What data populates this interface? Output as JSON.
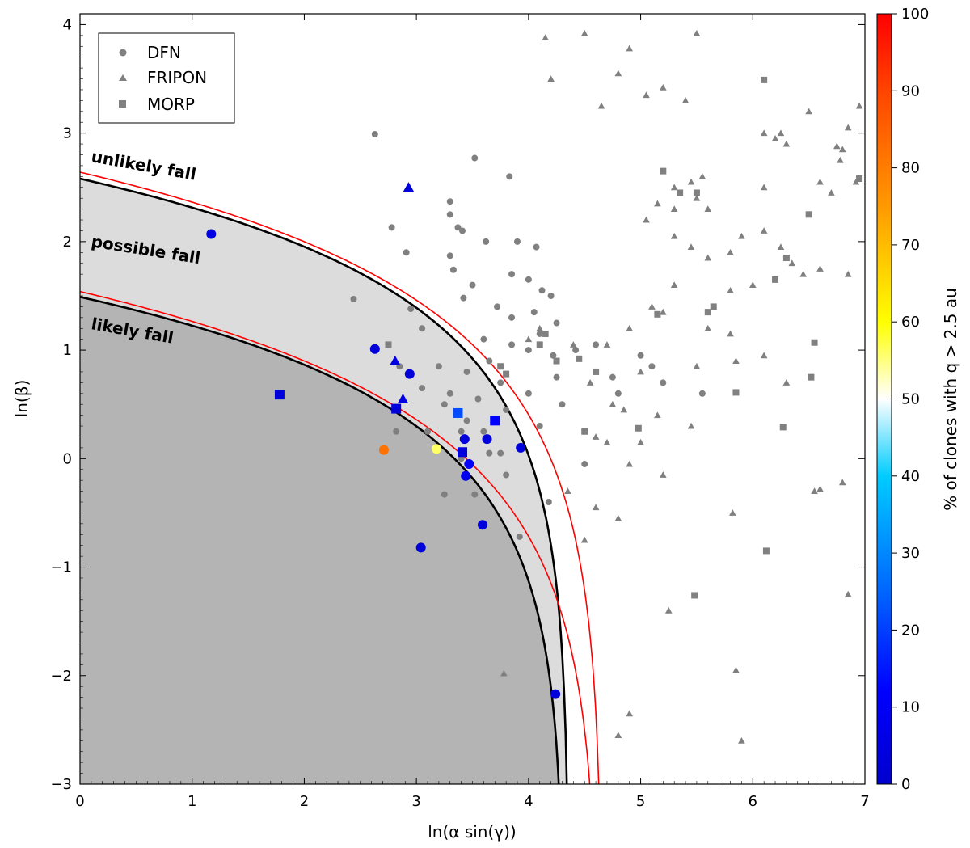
{
  "chart_data": {
    "type": "scatter",
    "xlabel": "ln(α sin(γ))",
    "ylabel": "ln(β)",
    "colorbar_label": "% of clones with q > 2.5 au",
    "xlim": [
      0,
      7
    ],
    "ylim": [
      -3,
      4.1
    ],
    "xticks": [
      "0",
      "1",
      "2",
      "3",
      "4",
      "5",
      "6",
      "7"
    ],
    "yticks": [
      "−3",
      "−2",
      "−1",
      "0",
      "1",
      "2",
      "3",
      "4"
    ],
    "colorbar_ticks": [
      "0",
      "10",
      "20",
      "30",
      "40",
      "50",
      "60",
      "70",
      "80",
      "90",
      "100"
    ],
    "legend": {
      "position": "top-left",
      "entries": [
        {
          "label": "DFN",
          "marker": "circle"
        },
        {
          "label": "FRIPON",
          "marker": "triangle"
        },
        {
          "label": "MORP",
          "marker": "square"
        }
      ]
    },
    "regions": [
      {
        "label": "unlikely fall"
      },
      {
        "label": "possible fall"
      },
      {
        "label": "likely fall"
      }
    ],
    "boundaries": [
      {
        "name": "black-upper",
        "color": "#000000",
        "y0": 2.58,
        "xmax": 4.36
      },
      {
        "name": "red-upper",
        "color": "#ff0000",
        "y0": 2.64,
        "xmax": 4.66
      },
      {
        "name": "black-lower",
        "color": "#000000",
        "y0": 1.49,
        "xmax": 4.32
      },
      {
        "name": "red-lower",
        "color": "#ff0000",
        "y0": 1.54,
        "xmax": 4.63
      }
    ],
    "colors": {
      "grey_marker": "#808080",
      "possible_fill": "#dcdcdc",
      "likely_fill": "#b4b4b4"
    },
    "series": [
      {
        "name": "DFN",
        "marker": "circle",
        "points": [
          [
            2.63,
            2.99
          ],
          [
            3.52,
            2.77
          ],
          [
            3.83,
            2.6
          ],
          [
            3.3,
            2.37
          ],
          [
            3.3,
            2.25
          ],
          [
            2.78,
            2.13
          ],
          [
            3.37,
            2.13
          ],
          [
            3.41,
            2.1
          ],
          [
            2.91,
            1.9
          ],
          [
            3.3,
            1.87
          ],
          [
            3.62,
            2.0
          ],
          [
            3.9,
            2.0
          ],
          [
            4.07,
            1.95
          ],
          [
            3.33,
            1.74
          ],
          [
            3.5,
            1.6
          ],
          [
            3.85,
            1.7
          ],
          [
            4.0,
            1.65
          ],
          [
            4.12,
            1.55
          ],
          [
            4.2,
            1.5
          ],
          [
            3.42,
            1.48
          ],
          [
            3.72,
            1.4
          ],
          [
            3.85,
            1.3
          ],
          [
            4.05,
            1.35
          ],
          [
            4.25,
            1.25
          ],
          [
            4.1,
            1.15
          ],
          [
            2.44,
            1.47
          ],
          [
            2.95,
            1.38
          ],
          [
            3.05,
            1.2
          ],
          [
            3.6,
            1.1
          ],
          [
            3.85,
            1.05
          ],
          [
            4.0,
            1.0
          ],
          [
            4.22,
            0.95
          ],
          [
            4.42,
            1.0
          ],
          [
            4.6,
            1.05
          ],
          [
            4.75,
            0.75
          ],
          [
            5.0,
            0.95
          ],
          [
            5.1,
            0.85
          ],
          [
            5.2,
            0.7
          ],
          [
            5.55,
            0.6
          ],
          [
            2.85,
            0.85
          ],
          [
            3.2,
            0.85
          ],
          [
            3.45,
            0.8
          ],
          [
            3.65,
            0.9
          ],
          [
            3.75,
            0.7
          ],
          [
            4.0,
            0.6
          ],
          [
            3.05,
            0.65
          ],
          [
            3.3,
            0.6
          ],
          [
            3.55,
            0.55
          ],
          [
            3.8,
            0.45
          ],
          [
            4.1,
            0.3
          ],
          [
            4.3,
            0.5
          ],
          [
            2.82,
            0.25
          ],
          [
            3.25,
            0.5
          ],
          [
            3.45,
            0.35
          ],
          [
            3.6,
            0.25
          ],
          [
            3.4,
            0.25
          ],
          [
            3.1,
            0.25
          ],
          [
            2.72,
            0.09
          ],
          [
            3.25,
            -0.33
          ],
          [
            3.52,
            -0.33
          ],
          [
            3.65,
            0.05
          ],
          [
            3.75,
            0.05
          ],
          [
            3.92,
            -0.72
          ],
          [
            3.8,
            -0.15
          ],
          [
            4.25,
            0.75
          ],
          [
            4.18,
            -0.4
          ],
          [
            4.8,
            0.6
          ],
          [
            3.4,
            0.0
          ],
          [
            4.5,
            -0.05
          ]
        ]
      },
      {
        "name": "FRIPON",
        "marker": "triangle",
        "points": [
          [
            4.15,
            3.88
          ],
          [
            4.5,
            3.92
          ],
          [
            5.5,
            3.92
          ],
          [
            4.9,
            3.78
          ],
          [
            4.8,
            3.55
          ],
          [
            4.2,
            3.5
          ],
          [
            5.2,
            3.42
          ],
          [
            5.05,
            3.35
          ],
          [
            5.4,
            3.3
          ],
          [
            4.65,
            3.25
          ],
          [
            6.5,
            3.2
          ],
          [
            6.95,
            3.25
          ],
          [
            6.1,
            3.0
          ],
          [
            6.25,
            3.0
          ],
          [
            6.2,
            2.95
          ],
          [
            6.3,
            2.9
          ],
          [
            6.6,
            2.55
          ],
          [
            6.75,
            2.88
          ],
          [
            6.8,
            2.85
          ],
          [
            6.85,
            3.05
          ],
          [
            6.78,
            2.75
          ],
          [
            6.92,
            2.55
          ],
          [
            6.7,
            2.45
          ],
          [
            6.1,
            2.5
          ],
          [
            5.55,
            2.6
          ],
          [
            5.45,
            2.55
          ],
          [
            5.05,
            2.2
          ],
          [
            5.15,
            2.35
          ],
          [
            5.3,
            2.5
          ],
          [
            5.5,
            2.4
          ],
          [
            5.6,
            2.3
          ],
          [
            5.3,
            2.05
          ],
          [
            5.3,
            2.3
          ],
          [
            5.45,
            1.95
          ],
          [
            5.6,
            1.85
          ],
          [
            5.8,
            1.9
          ],
          [
            5.9,
            2.05
          ],
          [
            6.1,
            2.1
          ],
          [
            6.25,
            1.95
          ],
          [
            6.35,
            1.8
          ],
          [
            6.45,
            1.7
          ],
          [
            6.6,
            1.75
          ],
          [
            6.85,
            1.7
          ],
          [
            6.0,
            1.6
          ],
          [
            5.8,
            1.55
          ],
          [
            5.3,
            1.6
          ],
          [
            5.1,
            1.4
          ],
          [
            5.2,
            1.35
          ],
          [
            5.6,
            1.2
          ],
          [
            5.8,
            1.15
          ],
          [
            6.1,
            0.95
          ],
          [
            6.3,
            0.7
          ],
          [
            4.1,
            1.2
          ],
          [
            4.0,
            1.1
          ],
          [
            4.9,
            1.2
          ],
          [
            4.7,
            1.05
          ],
          [
            5.0,
            0.8
          ],
          [
            5.5,
            0.85
          ],
          [
            5.85,
            0.9
          ],
          [
            5.45,
            0.3
          ],
          [
            4.75,
            0.5
          ],
          [
            4.85,
            0.45
          ],
          [
            5.15,
            0.4
          ],
          [
            4.7,
            0.15
          ],
          [
            5.0,
            0.15
          ],
          [
            4.9,
            -0.05
          ],
          [
            5.2,
            -0.15
          ],
          [
            4.35,
            -0.3
          ],
          [
            4.6,
            -0.45
          ],
          [
            4.8,
            -0.55
          ],
          [
            4.5,
            -0.75
          ],
          [
            5.25,
            -1.4
          ],
          [
            5.82,
            -0.5
          ],
          [
            6.55,
            -0.3
          ],
          [
            6.6,
            -0.28
          ],
          [
            6.8,
            -0.22
          ],
          [
            6.85,
            -1.25
          ],
          [
            5.85,
            -1.95
          ],
          [
            5.9,
            -2.6
          ],
          [
            4.8,
            -2.55
          ],
          [
            4.9,
            -2.35
          ],
          [
            3.78,
            -1.98
          ],
          [
            4.4,
            1.05
          ],
          [
            4.55,
            0.7
          ],
          [
            4.6,
            0.2
          ]
        ]
      },
      {
        "name": "MORP",
        "marker": "square",
        "points": [
          [
            6.1,
            3.49
          ],
          [
            6.95,
            2.58
          ],
          [
            5.2,
            2.65
          ],
          [
            5.35,
            2.45
          ],
          [
            5.5,
            2.45
          ],
          [
            6.5,
            2.25
          ],
          [
            6.3,
            1.85
          ],
          [
            6.2,
            1.65
          ],
          [
            5.65,
            1.4
          ],
          [
            5.6,
            1.35
          ],
          [
            5.15,
            1.33
          ],
          [
            4.15,
            1.15
          ],
          [
            4.25,
            0.9
          ],
          [
            4.45,
            0.92
          ],
          [
            4.1,
            1.05
          ],
          [
            3.8,
            0.78
          ],
          [
            4.6,
            0.8
          ],
          [
            5.85,
            0.61
          ],
          [
            6.55,
            1.07
          ],
          [
            6.52,
            0.75
          ],
          [
            6.27,
            0.29
          ],
          [
            4.98,
            0.28
          ],
          [
            6.12,
            -0.85
          ],
          [
            5.48,
            -1.26
          ],
          [
            4.5,
            0.25
          ],
          [
            2.75,
            1.05
          ],
          [
            3.75,
            0.85
          ]
        ]
      }
    ],
    "colored_points": [
      {
        "x": 1.17,
        "y": 2.07,
        "marker": "circle",
        "pct": 5
      },
      {
        "x": 2.93,
        "y": 2.5,
        "marker": "triangle",
        "pct": 3
      },
      {
        "x": 2.63,
        "y": 1.01,
        "marker": "circle",
        "pct": 3
      },
      {
        "x": 2.81,
        "y": 0.9,
        "marker": "triangle",
        "pct": 5
      },
      {
        "x": 2.94,
        "y": 0.78,
        "marker": "circle",
        "pct": 3
      },
      {
        "x": 1.78,
        "y": 0.59,
        "marker": "square",
        "pct": 3
      },
      {
        "x": 2.88,
        "y": 0.55,
        "marker": "triangle",
        "pct": 5
      },
      {
        "x": 2.82,
        "y": 0.46,
        "marker": "square",
        "pct": 3
      },
      {
        "x": 3.37,
        "y": 0.42,
        "marker": "square",
        "pct": 22
      },
      {
        "x": 3.7,
        "y": 0.35,
        "marker": "square",
        "pct": 12
      },
      {
        "x": 3.43,
        "y": 0.18,
        "marker": "circle",
        "pct": 3
      },
      {
        "x": 3.63,
        "y": 0.18,
        "marker": "circle",
        "pct": 3
      },
      {
        "x": 3.93,
        "y": 0.1,
        "marker": "circle",
        "pct": 3
      },
      {
        "x": 3.41,
        "y": 0.06,
        "marker": "square",
        "pct": 3
      },
      {
        "x": 2.71,
        "y": 0.08,
        "marker": "circle",
        "pct": 82
      },
      {
        "x": 3.18,
        "y": 0.09,
        "marker": "circle",
        "pct": 56
      },
      {
        "x": 3.47,
        "y": -0.05,
        "marker": "circle",
        "pct": 12
      },
      {
        "x": 3.44,
        "y": -0.16,
        "marker": "circle",
        "pct": 8
      },
      {
        "x": 3.59,
        "y": -0.61,
        "marker": "circle",
        "pct": 3
      },
      {
        "x": 3.04,
        "y": -0.82,
        "marker": "circle",
        "pct": 3
      },
      {
        "x": 4.24,
        "y": -2.17,
        "marker": "circle",
        "pct": 3
      }
    ]
  }
}
